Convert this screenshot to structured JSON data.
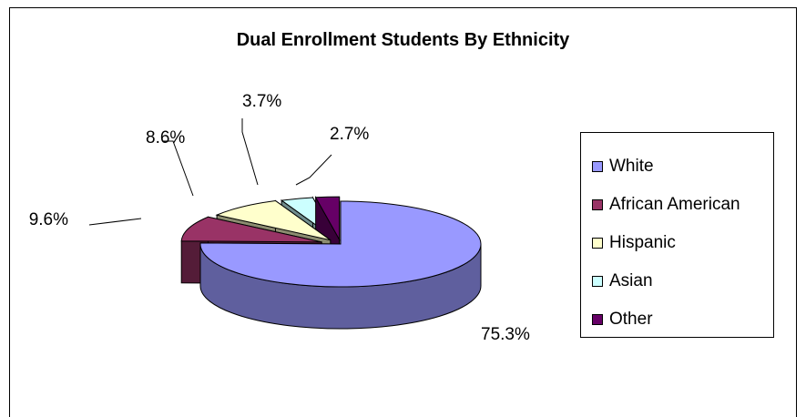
{
  "chart_data": {
    "type": "pie",
    "title": "Dual Enrollment Students By Ethnicity",
    "categories": [
      "White",
      "African American",
      "Hispanic",
      "Asian",
      "Other"
    ],
    "values": [
      75.3,
      9.6,
      8.6,
      3.7,
      2.7
    ],
    "data_labels": [
      "75.3%",
      "9.6%",
      "8.6%",
      "3.7%",
      "2.7%"
    ],
    "colors": {
      "White": "#9999ff",
      "African American": "#993366",
      "Hispanic": "#ffffcc",
      "Asian": "#ccffff",
      "Other": "#660066"
    },
    "style": "3d-exploded",
    "legend": "right"
  }
}
